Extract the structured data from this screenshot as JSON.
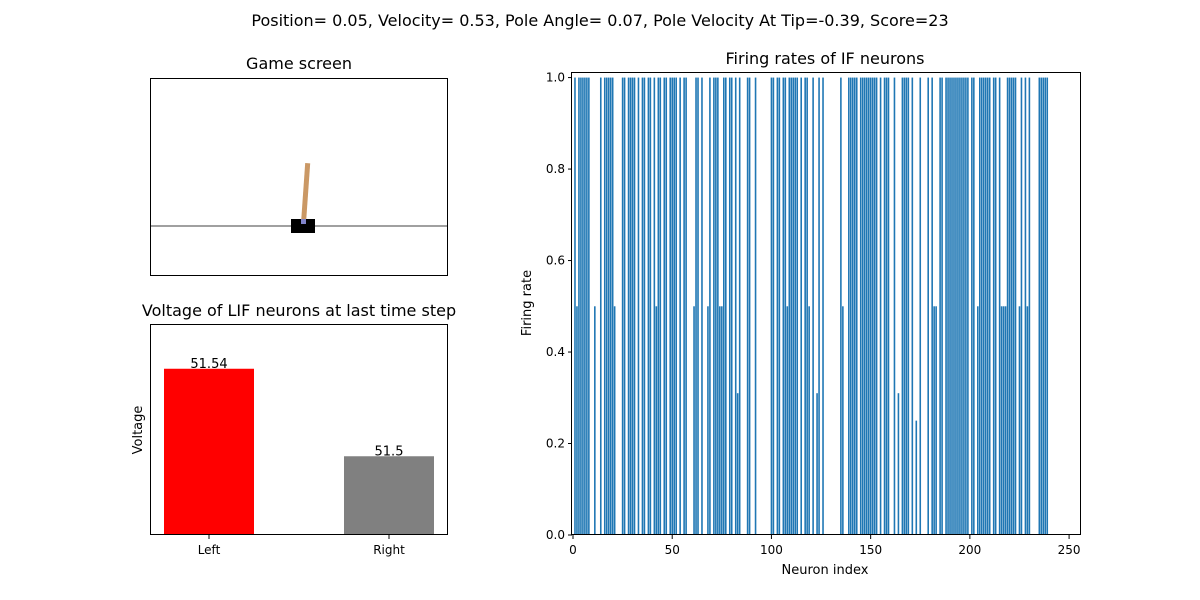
{
  "suptitle": "Position= 0.05, Velocity= 0.53, Pole Angle= 0.07, Pole Velocity At Tip=-0.39, Score=23",
  "game_screen": {
    "title": "Game screen",
    "cart_position": 0.05,
    "pole_angle": 0.07,
    "colors": {
      "cart": "#000000",
      "pole": "#ca9865",
      "track": "#808080",
      "axle": "#8184cb"
    }
  },
  "chart_data": [
    {
      "type": "bar",
      "title": "Voltage of LIF neurons at last time step",
      "xlabel": "",
      "ylabel": "Voltage",
      "categories": [
        "Left",
        "Right"
      ],
      "values": [
        51.54,
        51.5
      ],
      "value_labels": [
        "51.54",
        "51.5"
      ],
      "colors": [
        "#ff0000",
        "#808080"
      ],
      "ylim": [
        51.464,
        51.56
      ],
      "y_ticks_visible": false
    },
    {
      "type": "bar",
      "title": "Firing rates of IF neurons",
      "xlabel": "Neuron index",
      "ylabel": "Firing rate",
      "xlim": [
        -0.5,
        255.5
      ],
      "ylim": [
        0,
        1.01
      ],
      "x_ticks": [
        0,
        50,
        100,
        150,
        200,
        250
      ],
      "x_tick_labels": [
        "0",
        "50",
        "100",
        "150",
        "200",
        "250"
      ],
      "y_ticks": [
        0,
        0.2,
        0.4,
        0.6,
        0.8,
        1.0
      ],
      "y_tick_labels": [
        "0.0",
        "0.2",
        "0.4",
        "0.6",
        "0.8",
        "1.0"
      ],
      "color": "#1f77b4",
      "x": [
        0,
        1,
        2,
        3,
        4,
        5,
        6,
        7,
        8,
        9,
        10,
        11,
        12,
        13,
        14,
        15,
        16,
        17,
        18,
        19,
        20,
        21,
        22,
        23,
        24,
        25,
        26,
        27,
        28,
        29,
        30,
        31,
        32,
        33,
        34,
        35,
        36,
        37,
        38,
        39,
        40,
        41,
        42,
        43,
        44,
        45,
        46,
        47,
        48,
        49,
        50,
        51,
        52,
        53,
        54,
        55,
        56,
        57,
        58,
        59,
        60,
        61,
        62,
        63,
        64,
        65,
        66,
        67,
        68,
        69,
        70,
        71,
        72,
        73,
        74,
        75,
        76,
        77,
        78,
        79,
        80,
        81,
        82,
        83,
        84,
        85,
        86,
        87,
        88,
        89,
        90,
        91,
        92,
        93,
        94,
        95,
        96,
        97,
        98,
        99,
        100,
        101,
        102,
        103,
        104,
        105,
        106,
        107,
        108,
        109,
        110,
        111,
        112,
        113,
        114,
        115,
        116,
        117,
        118,
        119,
        120,
        121,
        122,
        123,
        124,
        125,
        126,
        127,
        128,
        129,
        130,
        131,
        132,
        133,
        134,
        135,
        136,
        137,
        138,
        139,
        140,
        141,
        142,
        143,
        144,
        145,
        146,
        147,
        148,
        149,
        150,
        151,
        152,
        153,
        154,
        155,
        156,
        157,
        158,
        159,
        160,
        161,
        162,
        163,
        164,
        165,
        166,
        167,
        168,
        169,
        170,
        171,
        172,
        173,
        174,
        175,
        176,
        177,
        178,
        179,
        180,
        181,
        182,
        183,
        184,
        185,
        186,
        187,
        188,
        189,
        190,
        191,
        192,
        193,
        194,
        195,
        196,
        197,
        198,
        199,
        200,
        201,
        202,
        203,
        204,
        205,
        206,
        207,
        208,
        209,
        210,
        211,
        212,
        213,
        214,
        215,
        216,
        217,
        218,
        219,
        220,
        221,
        222,
        223,
        224,
        225,
        226,
        227,
        228,
        229,
        230,
        231,
        232,
        233,
        234,
        235,
        236,
        237,
        238,
        239,
        240,
        241,
        242,
        243,
        244,
        245,
        246,
        247,
        248,
        249,
        250,
        251,
        252,
        253,
        254,
        255
      ],
      "values": [
        0,
        1,
        0.5,
        1,
        1,
        1,
        1,
        1,
        1,
        0,
        0,
        0.5,
        0,
        0,
        1,
        0,
        1,
        1,
        1,
        1,
        1,
        0.5,
        0,
        0,
        0,
        1,
        1,
        0,
        1,
        1,
        1,
        1,
        0,
        1,
        0,
        1,
        1,
        0,
        1,
        1,
        0,
        1,
        0.5,
        1,
        1,
        0,
        1,
        1,
        0,
        1,
        1,
        1,
        1,
        0,
        1,
        0,
        1,
        1,
        0,
        0,
        0,
        0.5,
        1,
        1,
        0,
        1,
        0,
        0,
        0.5,
        1,
        0,
        1,
        1,
        1,
        0.5,
        0.5,
        1,
        1,
        0,
        1,
        1,
        0,
        1,
        0.31,
        1,
        0,
        0,
        0,
        1,
        1,
        0,
        0,
        1,
        0,
        0,
        0,
        0,
        0,
        0,
        0,
        1,
        1,
        0,
        1,
        1,
        0,
        1,
        1,
        0.5,
        1,
        1,
        1,
        1,
        1,
        0,
        1,
        0,
        1,
        1,
        0.5,
        0,
        1,
        0,
        0.31,
        1,
        0,
        1,
        0,
        0,
        0,
        0,
        0,
        0,
        0,
        0,
        1,
        0.5,
        0,
        0,
        1,
        1,
        1,
        1,
        1,
        0,
        1,
        1,
        1,
        1,
        1,
        1,
        1,
        1,
        1,
        0,
        1,
        0,
        1,
        1,
        1,
        0,
        0,
        1,
        0,
        0.31,
        0,
        1,
        1,
        1,
        1,
        0,
        1,
        0,
        0.25,
        0,
        1,
        0,
        0,
        0,
        1,
        0,
        1,
        0.5,
        0.5,
        0,
        1,
        1,
        0,
        1,
        1,
        1,
        1,
        1,
        1,
        1,
        1,
        1,
        1,
        1,
        1,
        0,
        1,
        1,
        0,
        0.5,
        1,
        1,
        1,
        1,
        1,
        1,
        0,
        1,
        1,
        0,
        1,
        0.5,
        0.5,
        0.5,
        1,
        1,
        1,
        1,
        1,
        0,
        0.5,
        1,
        0,
        1,
        0.5,
        1,
        0,
        0,
        0,
        0,
        1,
        1,
        1,
        1,
        1,
        0,
        0,
        0,
        0,
        0,
        0,
        0,
        0,
        0,
        0,
        0,
        0,
        0,
        0,
        0,
        0
      ]
    }
  ]
}
